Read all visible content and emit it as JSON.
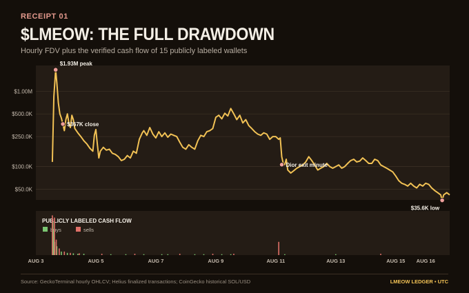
{
  "header": {
    "eyebrow": "RECEIPT 01",
    "title": "$LMEOW: THE FULL DRAWDOWN",
    "subtitle": "Hourly FDV plus the verified cash flow of 15 publicly labeled wallets"
  },
  "footer": {
    "source": "Source: GeckoTerminal hourly OHLCV; Helius finalized transactions; CoinGecko historical SOL/USD",
    "brand": "LMEOW LEDGER • UTC"
  },
  "colors": {
    "background": "#140f0a",
    "panel": "#241c15",
    "line": "#f2c255",
    "buys": "#7bc672",
    "sells": "#e07068",
    "marker": "#ef9f9b",
    "eyebrow": "#e59a8e"
  },
  "chart_data": [
    {
      "type": "line",
      "scale": "log",
      "y_ticks": [
        {
          "value": 50000,
          "label": "$50.0K"
        },
        {
          "value": 100000,
          "label": "$100.0K"
        },
        {
          "value": 250000,
          "label": "$250.0K"
        },
        {
          "value": 500000,
          "label": "$500.0K"
        },
        {
          "value": 1000000,
          "label": "$1.00M"
        }
      ],
      "ylim": [
        36000,
        2200000
      ],
      "xlim": [
        3.0,
        16.8
      ],
      "x_ticks": [
        {
          "value": 3.0,
          "label": "AUG 3"
        },
        {
          "value": 5.0,
          "label": "AUG 5"
        },
        {
          "value": 7.0,
          "label": "AUG 7"
        },
        {
          "value": 9.0,
          "label": "AUG 9"
        },
        {
          "value": 11.0,
          "label": "AUG 11"
        },
        {
          "value": 13.0,
          "label": "AUG 13"
        },
        {
          "value": 15.0,
          "label": "AUG 15"
        },
        {
          "value": 16.0,
          "label": "AUG 16"
        }
      ],
      "series": [
        {
          "points": [
            [
              3.55,
              115000
            ],
            [
              3.6,
              850000
            ],
            [
              3.66,
              1930000
            ],
            [
              3.7,
              1300000
            ],
            [
              3.75,
              700000
            ],
            [
              3.8,
              500000
            ],
            [
              3.85,
              440000
            ],
            [
              3.9,
              367000
            ],
            [
              3.95,
              300000
            ],
            [
              4.0,
              420000
            ],
            [
              4.05,
              500000
            ],
            [
              4.1,
              380000
            ],
            [
              4.15,
              330000
            ],
            [
              4.2,
              480000
            ],
            [
              4.25,
              420000
            ],
            [
              4.3,
              320000
            ],
            [
              4.4,
              280000
            ],
            [
              4.5,
              250000
            ],
            [
              4.6,
              220000
            ],
            [
              4.7,
              200000
            ],
            [
              4.8,
              175000
            ],
            [
              4.9,
              160000
            ],
            [
              4.95,
              260000
            ],
            [
              5.0,
              310000
            ],
            [
              5.05,
              200000
            ],
            [
              5.1,
              130000
            ],
            [
              5.15,
              160000
            ],
            [
              5.25,
              180000
            ],
            [
              5.35,
              165000
            ],
            [
              5.45,
              170000
            ],
            [
              5.55,
              150000
            ],
            [
              5.65,
              145000
            ],
            [
              5.75,
              135000
            ],
            [
              5.85,
              120000
            ],
            [
              5.95,
              125000
            ],
            [
              6.05,
              140000
            ],
            [
              6.15,
              130000
            ],
            [
              6.25,
              160000
            ],
            [
              6.35,
              150000
            ],
            [
              6.45,
              230000
            ],
            [
              6.55,
              280000
            ],
            [
              6.6,
              300000
            ],
            [
              6.7,
              260000
            ],
            [
              6.8,
              330000
            ],
            [
              6.9,
              270000
            ],
            [
              7.0,
              240000
            ],
            [
              7.1,
              290000
            ],
            [
              7.2,
              250000
            ],
            [
              7.3,
              280000
            ],
            [
              7.4,
              245000
            ],
            [
              7.5,
              270000
            ],
            [
              7.6,
              260000
            ],
            [
              7.7,
              250000
            ],
            [
              7.8,
              210000
            ],
            [
              7.9,
              180000
            ],
            [
              8.0,
              170000
            ],
            [
              8.1,
              195000
            ],
            [
              8.2,
              180000
            ],
            [
              8.3,
              170000
            ],
            [
              8.4,
              220000
            ],
            [
              8.5,
              260000
            ],
            [
              8.6,
              250000
            ],
            [
              8.7,
              290000
            ],
            [
              8.8,
              300000
            ],
            [
              8.9,
              320000
            ],
            [
              9.0,
              450000
            ],
            [
              9.1,
              480000
            ],
            [
              9.2,
              430000
            ],
            [
              9.3,
              510000
            ],
            [
              9.4,
              470000
            ],
            [
              9.5,
              590000
            ],
            [
              9.6,
              500000
            ],
            [
              9.7,
              420000
            ],
            [
              9.8,
              480000
            ],
            [
              9.9,
              380000
            ],
            [
              10.0,
              420000
            ],
            [
              10.1,
              350000
            ],
            [
              10.2,
              320000
            ],
            [
              10.3,
              290000
            ],
            [
              10.4,
              270000
            ],
            [
              10.5,
              260000
            ],
            [
              10.6,
              280000
            ],
            [
              10.7,
              270000
            ],
            [
              10.8,
              230000
            ],
            [
              10.9,
              250000
            ],
            [
              11.0,
              250000
            ],
            [
              11.1,
              230000
            ],
            [
              11.15,
              240000
            ],
            [
              11.2,
              135000
            ],
            [
              11.25,
              110000
            ],
            [
              11.3,
              106000
            ],
            [
              11.35,
              125000
            ],
            [
              11.4,
              90000
            ],
            [
              11.5,
              82000
            ],
            [
              11.6,
              88000
            ],
            [
              11.7,
              95000
            ],
            [
              11.8,
              100000
            ],
            [
              11.9,
              105000
            ],
            [
              12.0,
              115000
            ],
            [
              12.1,
              135000
            ],
            [
              12.2,
              120000
            ],
            [
              12.3,
              105000
            ],
            [
              12.4,
              90000
            ],
            [
              12.5,
              95000
            ],
            [
              12.6,
              100000
            ],
            [
              12.7,
              110000
            ],
            [
              12.8,
              100000
            ],
            [
              12.9,
              95000
            ],
            [
              13.0,
              100000
            ],
            [
              13.1,
              105000
            ],
            [
              13.2,
              95000
            ],
            [
              13.3,
              100000
            ],
            [
              13.4,
              110000
            ],
            [
              13.5,
              120000
            ],
            [
              13.6,
              125000
            ],
            [
              13.7,
              115000
            ],
            [
              13.8,
              118000
            ],
            [
              13.9,
              130000
            ],
            [
              14.0,
              120000
            ],
            [
              14.1,
              110000
            ],
            [
              14.2,
              110000
            ],
            [
              14.3,
              125000
            ],
            [
              14.4,
              120000
            ],
            [
              14.5,
              105000
            ],
            [
              14.6,
              100000
            ],
            [
              14.7,
              95000
            ],
            [
              14.8,
              90000
            ],
            [
              14.9,
              85000
            ],
            [
              15.0,
              75000
            ],
            [
              15.1,
              65000
            ],
            [
              15.2,
              60000
            ],
            [
              15.3,
              58000
            ],
            [
              15.4,
              55000
            ],
            [
              15.5,
              60000
            ],
            [
              15.6,
              55000
            ],
            [
              15.7,
              52000
            ],
            [
              15.8,
              58000
            ],
            [
              15.9,
              55000
            ],
            [
              16.0,
              60000
            ],
            [
              16.1,
              58000
            ],
            [
              16.2,
              52000
            ],
            [
              16.3,
              48000
            ],
            [
              16.4,
              45000
            ],
            [
              16.5,
              42000
            ],
            [
              16.55,
              35600
            ],
            [
              16.6,
              42000
            ],
            [
              16.7,
              45000
            ],
            [
              16.8,
              42000
            ]
          ]
        }
      ],
      "annotations": [
        {
          "x": 3.66,
          "y": 1930000,
          "text": "$1.93M peak",
          "anchor": "above-right"
        },
        {
          "x": 3.9,
          "y": 367000,
          "text": "$367K close",
          "anchor": "right"
        },
        {
          "x": 11.2,
          "y": 106000,
          "text": "Dior exit minute",
          "anchor": "right"
        },
        {
          "x": 16.55,
          "y": 35600,
          "text": "$35.6K low",
          "anchor": "below-left"
        }
      ]
    },
    {
      "type": "bar",
      "title": "PUBLICLY LABELED CASH FLOW",
      "series": [
        {
          "name": "buys",
          "bars": [
            [
              3.57,
              0.75
            ],
            [
              3.6,
              0.55
            ],
            [
              3.63,
              0.3
            ],
            [
              3.7,
              0.2
            ],
            [
              3.85,
              0.08
            ],
            [
              4.05,
              0.05
            ],
            [
              4.25,
              0.04
            ],
            [
              4.4,
              0.03
            ],
            [
              4.6,
              0.03
            ],
            [
              5.5,
              0.02
            ],
            [
              6.0,
              0.02
            ],
            [
              6.6,
              0.02
            ],
            [
              7.2,
              0.02
            ],
            [
              7.4,
              0.02
            ],
            [
              8.3,
              0.02
            ],
            [
              8.6,
              0.02
            ],
            [
              9.2,
              0.02
            ],
            [
              9.5,
              0.02
            ],
            [
              11.3,
              0.02
            ],
            [
              13.0,
              0.02
            ]
          ]
        },
        {
          "name": "sells",
          "bars": [
            [
              3.55,
              0.9
            ],
            [
              3.62,
              0.85
            ],
            [
              3.68,
              0.35
            ],
            [
              3.78,
              0.15
            ],
            [
              3.95,
              0.08
            ],
            [
              4.15,
              0.05
            ],
            [
              4.45,
              0.04
            ],
            [
              5.2,
              0.03
            ],
            [
              6.3,
              0.03
            ],
            [
              7.8,
              0.03
            ],
            [
              8.9,
              0.03
            ],
            [
              9.6,
              0.03
            ],
            [
              11.1,
              0.3
            ],
            [
              14.5,
              0.03
            ]
          ]
        }
      ]
    }
  ]
}
